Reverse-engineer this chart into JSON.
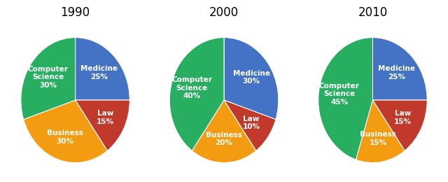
{
  "years": [
    "1990",
    "2000",
    "2010"
  ],
  "fields": [
    "Medicine",
    "Law",
    "Business",
    "Computer Science"
  ],
  "colors": [
    "#4472C4",
    "#C0392B",
    "#F39C12",
    "#27AE60"
  ],
  "values": {
    "1990": [
      25,
      15,
      30,
      30
    ],
    "2000": [
      30,
      10,
      20,
      40
    ],
    "2010": [
      25,
      15,
      15,
      45
    ]
  },
  "labels": {
    "1990": [
      "Medicine\n25%",
      "Law\n15%",
      "Business\n30%",
      "Computer\nScience\n30%"
    ],
    "2000": [
      "Medicine\n30%",
      "Law\n10%",
      "Business\n20%",
      "Computer\nScience\n40%"
    ],
    "2010": [
      "Medicine\n25%",
      "Law\n15%",
      "Business\n15%",
      "Computer\nScience\n45%"
    ]
  },
  "startangle": 90,
  "title_fontsize": 12,
  "label_fontsize": 7.5,
  "background_color": "#ffffff"
}
